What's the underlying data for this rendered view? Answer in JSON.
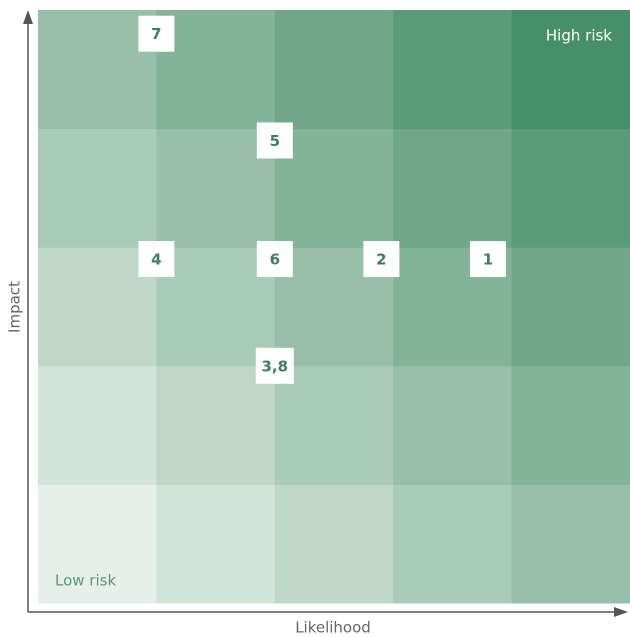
{
  "chart_data": {
    "type": "scatter",
    "x_label": "Likelihood",
    "y_label": "Impact",
    "annotations": [
      "High risk",
      "Low risk"
    ],
    "labels": [
      "7",
      "5",
      "4",
      "6",
      "2",
      "1",
      "3,8"
    ],
    "x": [
      1.0,
      2.0,
      1.0,
      2.0,
      2.9,
      3.8,
      2.0
    ],
    "y": [
      4.8,
      3.9,
      2.9,
      2.9,
      2.9,
      2.9,
      2.0
    ],
    "xlim": [
      0,
      5
    ],
    "ylim": [
      0,
      5
    ],
    "marker_color": "#ffffff",
    "label_color": "#3f7f5c",
    "cell_colors": [
      "#e6efe9",
      "#478f68"
    ]
  }
}
